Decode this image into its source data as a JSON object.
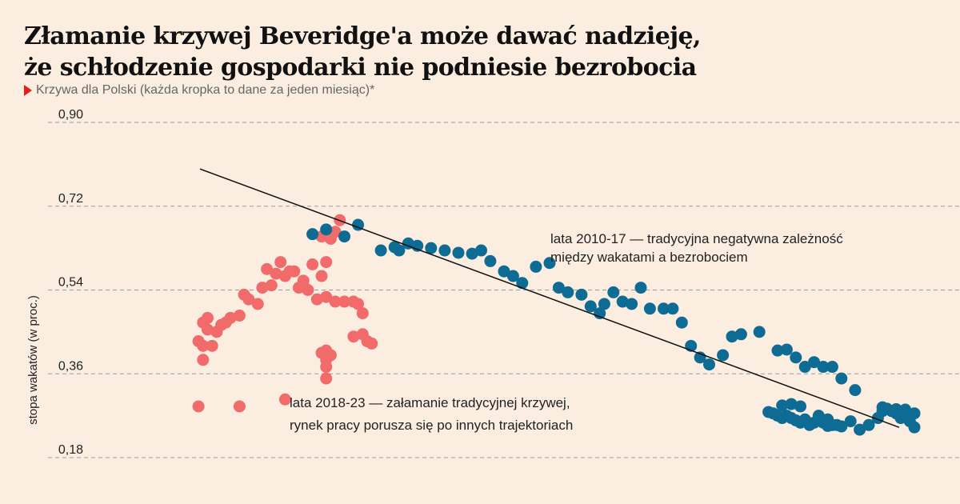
{
  "header": {
    "title_line1": "Złamanie krzywej Beveridge'a może dawać nadzieję,",
    "title_line2": "że schłodzenie gospodarki nie podniesie bezrobocia",
    "subtitle": "Krzywa dla Polski (każda kropka to dane za jeden miesiąc)*"
  },
  "chart_data": {
    "type": "scatter",
    "title": "Złamanie krzywej Beveridge'a może dawać nadzieję, że schłodzenie gospodarki nie podniesie bezrobocia",
    "subtitle": "Krzywa dla Polski (każda kropka to dane za jeden miesiąc)*",
    "ylabel": "stopa wakatów (w proc.)",
    "xlabel": "",
    "ylim": [
      0.18,
      0.9
    ],
    "xlim": [
      0,
      100
    ],
    "yticks": [
      "0,90",
      "0,72",
      "0,54",
      "0,36",
      "0,18"
    ],
    "ytick_values": [
      0.9,
      0.72,
      0.54,
      0.36,
      0.18
    ],
    "grid": "horizontal dashed",
    "trendline": {
      "x1": 16.67,
      "y1": 0.8,
      "x2": 93.33,
      "y2": 0.245
    },
    "annotations": [
      {
        "lines": [
          "lata 2010-17 — tradycyjna negatywna zależność",
          "między wakatami a bezrobociem"
        ]
      },
      {
        "lines": [
          "lata 2018-23 — załamanie tradycyjnej krzywej,",
          "rynek pracy porusza się po innych trajektoriach"
        ]
      }
    ],
    "series": [
      {
        "label": "lata 2010-17",
        "color": "#0e6b93",
        "points": [
          [
            34,
            0.68
          ],
          [
            30.5,
            0.67
          ],
          [
            29,
            0.66
          ],
          [
            32.5,
            0.655
          ],
          [
            36.5,
            0.625
          ],
          [
            38,
            0.632
          ],
          [
            38.5,
            0.625
          ],
          [
            39.5,
            0.64
          ],
          [
            40.5,
            0.635
          ],
          [
            42,
            0.63
          ],
          [
            43.5,
            0.625
          ],
          [
            45,
            0.62
          ],
          [
            46.5,
            0.618
          ],
          [
            47.5,
            0.625
          ],
          [
            48.5,
            0.602
          ],
          [
            50,
            0.58
          ],
          [
            51,
            0.57
          ],
          [
            52,
            0.555
          ],
          [
            53.5,
            0.59
          ],
          [
            55,
            0.598
          ],
          [
            56,
            0.545
          ],
          [
            57,
            0.535
          ],
          [
            58.5,
            0.53
          ],
          [
            59.5,
            0.505
          ],
          [
            60.5,
            0.49
          ],
          [
            61,
            0.51
          ],
          [
            62,
            0.535
          ],
          [
            63,
            0.515
          ],
          [
            64,
            0.51
          ],
          [
            65,
            0.545
          ],
          [
            66,
            0.5
          ],
          [
            67.5,
            0.5
          ],
          [
            68.5,
            0.5
          ],
          [
            69.5,
            0.47
          ],
          [
            70.5,
            0.42
          ],
          [
            71.5,
            0.395
          ],
          [
            72.5,
            0.38
          ],
          [
            74,
            0.4
          ],
          [
            75,
            0.44
          ],
          [
            76,
            0.445
          ],
          [
            78,
            0.45
          ],
          [
            80,
            0.41
          ],
          [
            81,
            0.412
          ],
          [
            82,
            0.395
          ],
          [
            83,
            0.375
          ],
          [
            84,
            0.385
          ],
          [
            85,
            0.375
          ],
          [
            86,
            0.375
          ],
          [
            87,
            0.35
          ],
          [
            88.5,
            0.325
          ],
          [
            79,
            0.278
          ],
          [
            79.5,
            0.275
          ],
          [
            80,
            0.27
          ],
          [
            80.5,
            0.265
          ],
          [
            81,
            0.27
          ],
          [
            81.5,
            0.265
          ],
          [
            82,
            0.26
          ],
          [
            82.5,
            0.255
          ],
          [
            83,
            0.262
          ],
          [
            83.5,
            0.25
          ],
          [
            84,
            0.255
          ],
          [
            84.5,
            0.26
          ],
          [
            85,
            0.255
          ],
          [
            85.5,
            0.248
          ],
          [
            86,
            0.25
          ],
          [
            86.5,
            0.25
          ],
          [
            87,
            0.247
          ],
          [
            88,
            0.258
          ],
          [
            89,
            0.24
          ],
          [
            90,
            0.25
          ],
          [
            91,
            0.265
          ],
          [
            91.5,
            0.28
          ],
          [
            92,
            0.285
          ],
          [
            92.5,
            0.28
          ],
          [
            93,
            0.275
          ],
          [
            93.5,
            0.265
          ],
          [
            94,
            0.27
          ],
          [
            94.5,
            0.258
          ],
          [
            95,
            0.275
          ],
          [
            95,
            0.245
          ],
          [
            80.5,
            0.292
          ],
          [
            81.5,
            0.295
          ],
          [
            82.5,
            0.29
          ],
          [
            84.5,
            0.27
          ],
          [
            85.5,
            0.262
          ],
          [
            91.5,
            0.288
          ],
          [
            93,
            0.284
          ],
          [
            94,
            0.283
          ]
        ]
      },
      {
        "label": "lata 2018-23",
        "color": "#f26b6b",
        "points": [
          [
            16.5,
            0.29
          ],
          [
            21,
            0.29
          ],
          [
            26,
            0.305
          ],
          [
            17,
            0.39
          ],
          [
            16.5,
            0.43
          ],
          [
            17,
            0.42
          ],
          [
            18,
            0.42
          ],
          [
            17.5,
            0.455
          ],
          [
            18.5,
            0.45
          ],
          [
            19,
            0.465
          ],
          [
            17,
            0.47
          ],
          [
            17.5,
            0.48
          ],
          [
            19.5,
            0.47
          ],
          [
            20,
            0.48
          ],
          [
            21,
            0.485
          ],
          [
            22,
            0.52
          ],
          [
            21.5,
            0.53
          ],
          [
            23,
            0.51
          ],
          [
            23.5,
            0.545
          ],
          [
            24.5,
            0.55
          ],
          [
            24,
            0.585
          ],
          [
            25,
            0.575
          ],
          [
            26,
            0.57
          ],
          [
            26.5,
            0.58
          ],
          [
            25.5,
            0.6
          ],
          [
            27,
            0.58
          ],
          [
            28,
            0.56
          ],
          [
            29,
            0.595
          ],
          [
            30.5,
            0.6
          ],
          [
            28.5,
            0.54
          ],
          [
            27.5,
            0.545
          ],
          [
            30,
            0.57
          ],
          [
            30,
            0.655
          ],
          [
            31,
            0.65
          ],
          [
            31.5,
            0.665
          ],
          [
            32,
            0.69
          ],
          [
            30.5,
            0.525
          ],
          [
            31.5,
            0.515
          ],
          [
            32.5,
            0.515
          ],
          [
            33.5,
            0.515
          ],
          [
            34,
            0.51
          ],
          [
            34.5,
            0.49
          ],
          [
            33.5,
            0.44
          ],
          [
            34.5,
            0.445
          ],
          [
            35,
            0.43
          ],
          [
            35.5,
            0.425
          ],
          [
            30.5,
            0.41
          ],
          [
            31,
            0.4
          ],
          [
            30,
            0.405
          ],
          [
            30.5,
            0.39
          ],
          [
            30.5,
            0.375
          ],
          [
            30.5,
            0.35
          ],
          [
            29.5,
            0.52
          ],
          [
            28,
            0.55
          ]
        ]
      }
    ]
  }
}
